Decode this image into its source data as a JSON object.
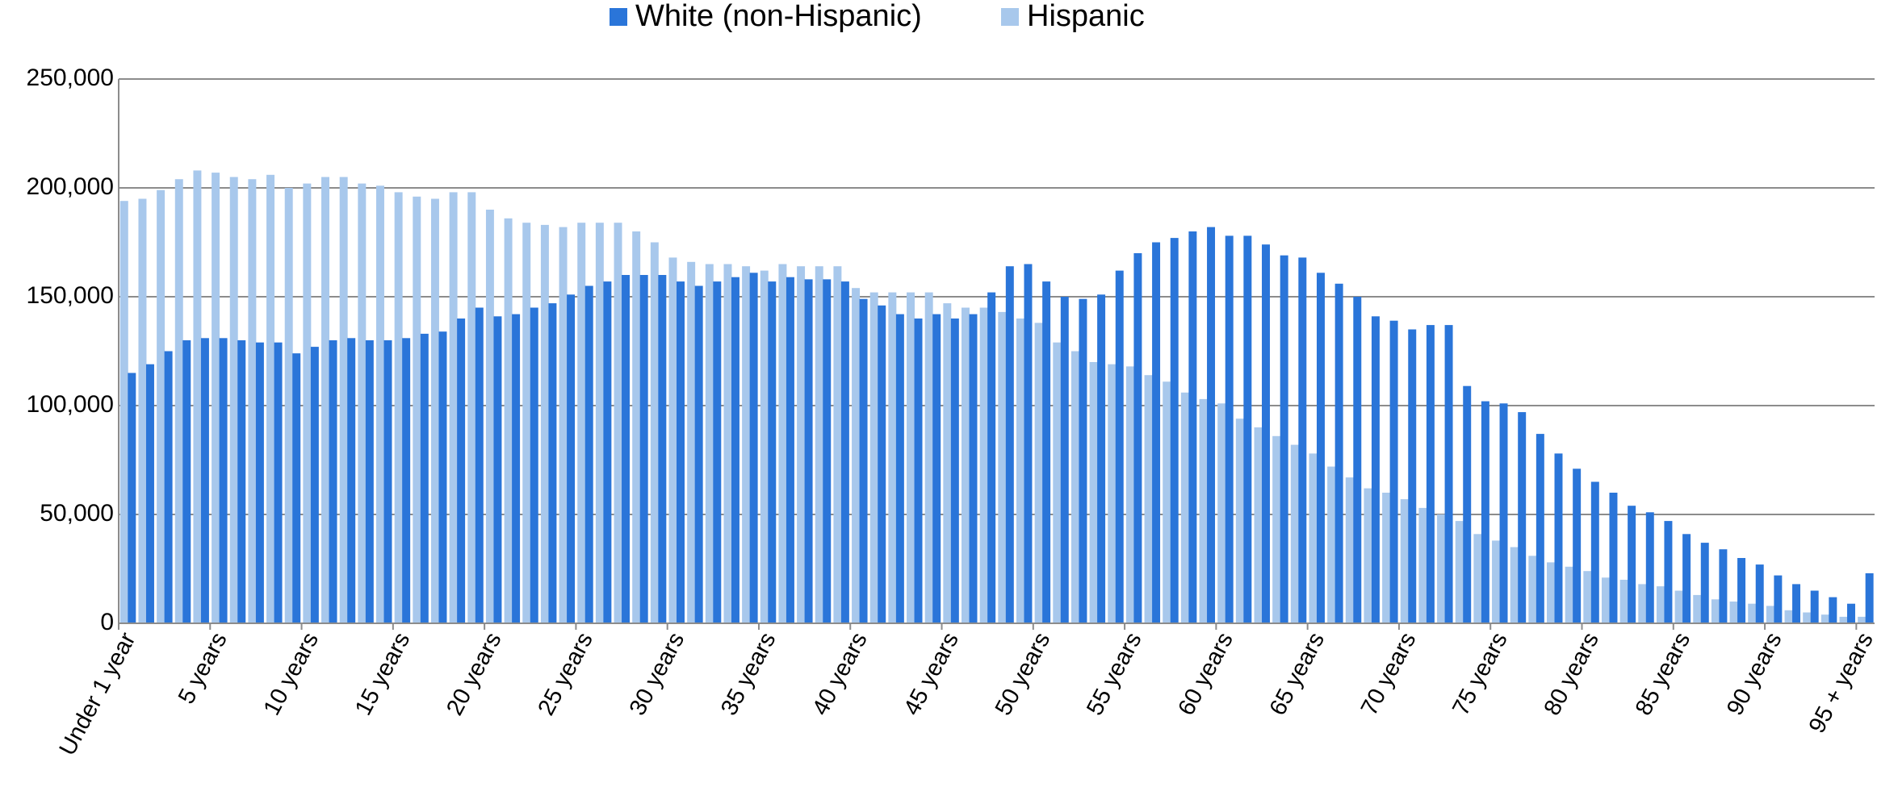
{
  "chart_data": {
    "type": "bar",
    "categories": [
      "Under 1 year",
      null,
      null,
      null,
      null,
      "5 years",
      null,
      null,
      null,
      null,
      "10 years",
      null,
      null,
      null,
      null,
      "15 years",
      null,
      null,
      null,
      null,
      "20 years",
      null,
      null,
      null,
      null,
      "25 years",
      null,
      null,
      null,
      null,
      "30 years",
      null,
      null,
      null,
      null,
      "35 years",
      null,
      null,
      null,
      null,
      "40 years",
      null,
      null,
      null,
      null,
      "45 years",
      null,
      null,
      null,
      null,
      "50 years",
      null,
      null,
      null,
      null,
      "55 years",
      null,
      null,
      null,
      null,
      "60 years",
      null,
      null,
      null,
      null,
      "65 years",
      null,
      null,
      null,
      null,
      "70 years",
      null,
      null,
      null,
      null,
      "75 years",
      null,
      null,
      null,
      null,
      "80 years",
      null,
      null,
      null,
      null,
      "85 years",
      null,
      null,
      null,
      null,
      "90 years",
      null,
      null,
      null,
      null,
      "95 + years"
    ],
    "series": [
      {
        "name": "White (non-Hispanic)",
        "color": "#2a75d9",
        "values": [
          115000,
          119000,
          125000,
          130000,
          131000,
          131000,
          130000,
          129000,
          129000,
          124000,
          127000,
          130000,
          131000,
          130000,
          130000,
          131000,
          133000,
          134000,
          140000,
          145000,
          141000,
          142000,
          145000,
          147000,
          151000,
          155000,
          157000,
          160000,
          160000,
          160000,
          157000,
          155000,
          157000,
          159000,
          161000,
          157000,
          159000,
          158000,
          158000,
          157000,
          149000,
          146000,
          142000,
          140000,
          142000,
          140000,
          142000,
          152000,
          164000,
          165000,
          157000,
          150000,
          149000,
          151000,
          162000,
          170000,
          175000,
          177000,
          180000,
          182000,
          178000,
          178000,
          174000,
          169000,
          168000,
          161000,
          156000,
          150000,
          141000,
          139000,
          135000,
          137000,
          137000,
          109000,
          102000,
          101000,
          97000,
          87000,
          78000,
          71000,
          65000,
          60000,
          54000,
          51000,
          47000,
          41000,
          37000,
          34000,
          30000,
          27000,
          22000,
          18000,
          15000,
          12000,
          9000,
          23000
        ]
      },
      {
        "name": "Hispanic",
        "color": "#a8c8ec",
        "values": [
          194000,
          195000,
          199000,
          204000,
          208000,
          207000,
          205000,
          204000,
          206000,
          200000,
          202000,
          205000,
          205000,
          202000,
          201000,
          198000,
          196000,
          195000,
          198000,
          198000,
          190000,
          186000,
          184000,
          183000,
          182000,
          184000,
          184000,
          184000,
          180000,
          175000,
          168000,
          166000,
          165000,
          165000,
          164000,
          162000,
          165000,
          164000,
          164000,
          164000,
          154000,
          152000,
          152000,
          152000,
          152000,
          147000,
          145000,
          145000,
          143000,
          140000,
          138000,
          129000,
          125000,
          120000,
          119000,
          118000,
          114000,
          111000,
          106000,
          103000,
          101000,
          94000,
          90000,
          86000,
          82000,
          78000,
          72000,
          67000,
          62000,
          60000,
          57000,
          53000,
          50000,
          47000,
          41000,
          38000,
          35000,
          31000,
          28000,
          26000,
          24000,
          21000,
          20000,
          18000,
          17000,
          15000,
          13000,
          11000,
          10000,
          9000,
          8000,
          6000,
          5000,
          4000,
          3000,
          3000
        ]
      }
    ],
    "ylim": [
      0,
      250000
    ],
    "yticks": [
      0,
      {
        "value": 50000,
        "label": "50,000"
      },
      {
        "value": 100000,
        "label": "100,000"
      },
      {
        "value": 150000,
        "label": "150,000"
      },
      {
        "value": 200000,
        "label": "200,000"
      },
      {
        "value": 250000,
        "label": "250,000"
      }
    ],
    "grid": true,
    "legend": "top"
  }
}
